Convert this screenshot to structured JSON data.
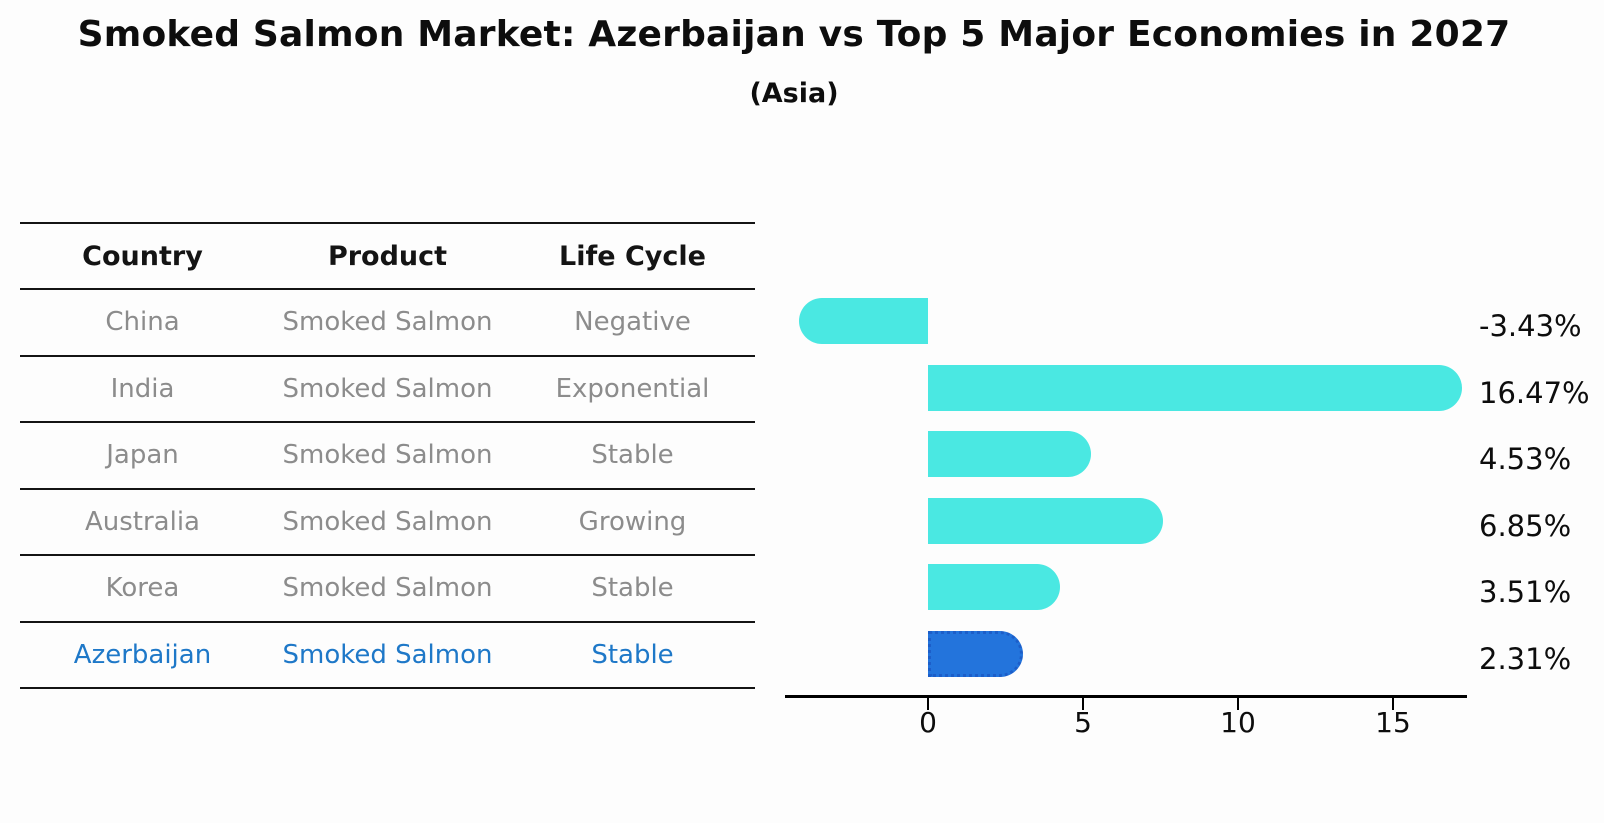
{
  "header": {
    "title": "Smoked Salmon Market: Azerbaijan vs Top 5 Major Economies in 2027",
    "subtitle": "(Asia)"
  },
  "table": {
    "columns": [
      "Country",
      "Product",
      "Life Cycle"
    ],
    "rows": [
      {
        "country": "China",
        "product": "Smoked Salmon",
        "life_cycle": "Negative",
        "highlight": false
      },
      {
        "country": "India",
        "product": "Smoked Salmon",
        "life_cycle": "Exponential",
        "highlight": false
      },
      {
        "country": "Japan",
        "product": "Smoked Salmon",
        "life_cycle": "Stable",
        "highlight": false
      },
      {
        "country": "Australia",
        "product": "Smoked Salmon",
        "life_cycle": "Growing",
        "highlight": false
      },
      {
        "country": "Korea",
        "product": "Smoked Salmon",
        "life_cycle": "Stable",
        "highlight": false
      },
      {
        "country": "Azerbaijan",
        "product": "Smoked Salmon",
        "life_cycle": "Stable",
        "highlight": true
      }
    ]
  },
  "chart_data": {
    "type": "bar",
    "orientation": "horizontal",
    "title": "Smoked Salmon Market: Azerbaijan vs Top 5 Major Economies in 2027",
    "subtitle": "(Asia)",
    "categories": [
      "China",
      "India",
      "Japan",
      "Australia",
      "Korea",
      "Azerbaijan"
    ],
    "values": [
      -3.43,
      16.47,
      4.53,
      6.85,
      3.51,
      2.31
    ],
    "value_labels": [
      "-3.43%",
      "16.47%",
      "4.53%",
      "6.85%",
      "3.51%",
      "2.31%"
    ],
    "x_ticks": [
      0,
      5,
      10,
      15
    ],
    "xlim": [
      -4.7,
      17.4
    ],
    "grid": false,
    "legend": "none",
    "highlight_index": 5,
    "bar_color": "#4ae8e2",
    "highlight_bar_color": "#2374dc",
    "highlight_border_color": "#1c5ec9"
  },
  "colors": {
    "row_text": "#8c8c8c",
    "highlight_text": "#1e78c8",
    "header_text": "#141414",
    "axis": "#000000",
    "value_label": "#0d0d0d"
  }
}
